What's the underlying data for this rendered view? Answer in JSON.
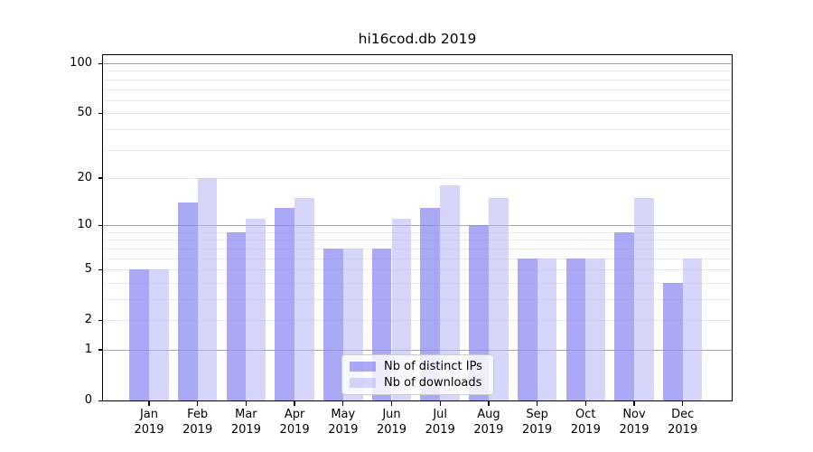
{
  "title": "hi16cod.db 2019",
  "chart_data": {
    "type": "bar",
    "title": "hi16cod.db 2019",
    "categories": [
      "Jan",
      "Feb",
      "Mar",
      "Apr",
      "May",
      "Jun",
      "Jul",
      "Aug",
      "Sep",
      "Oct",
      "Nov",
      "Dec"
    ],
    "category_year": "2019",
    "series": [
      {
        "name": "Nb of distinct IPs",
        "color": "rgba(136,136,242,0.72)",
        "values": [
          5,
          14,
          9,
          13,
          7,
          7,
          13,
          10,
          6,
          6,
          9,
          4
        ]
      },
      {
        "name": "Nb of downloads",
        "color": "rgba(180,180,246,0.55)",
        "values": [
          5,
          20,
          11,
          15,
          7,
          11,
          18,
          15,
          6,
          6,
          15,
          6
        ]
      }
    ],
    "y_axis": {
      "scale": "log1p",
      "tick_labels": [
        100,
        50,
        20,
        10,
        5,
        2,
        1,
        0
      ],
      "major_gridlines": [
        1,
        10,
        100
      ],
      "minor_gridlines": [
        2,
        3,
        4,
        5,
        6,
        7,
        8,
        9,
        20,
        30,
        40,
        50,
        60,
        70,
        80,
        90
      ],
      "min": 0,
      "max": 112
    },
    "x_axis": {
      "label_lines": 2
    },
    "legend": {
      "position": "lower center"
    },
    "grid": true,
    "colors": {
      "minor_grid": "#e9e9e9",
      "major_grid": "#a6a6a6",
      "axis": "#000000",
      "background": "#ffffff"
    }
  }
}
